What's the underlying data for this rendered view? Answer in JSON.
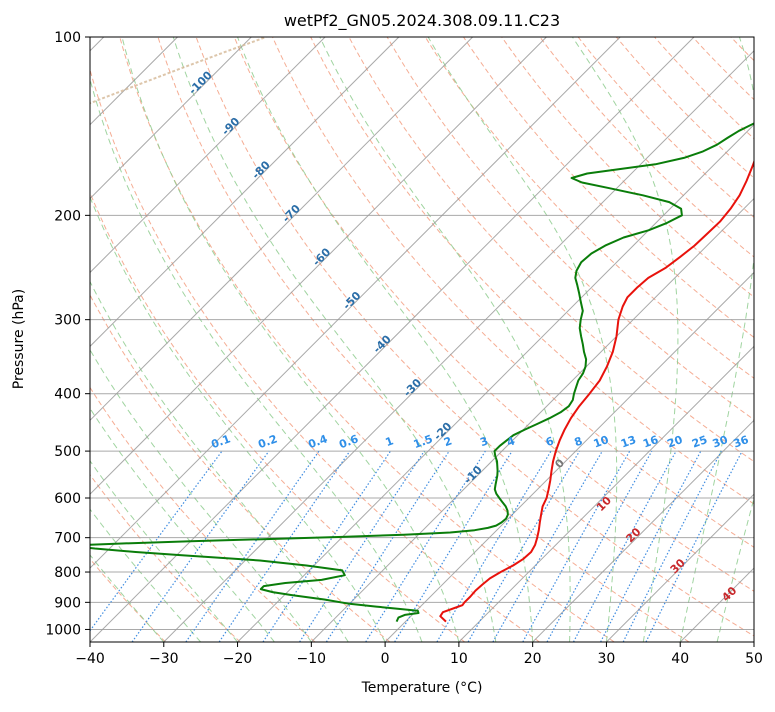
{
  "chart_data": {
    "type": "line",
    "chart_kind": "skew-T log-p diagram",
    "title": "wetPf2_GN05.2024.308.09.11.C23",
    "xlabel": "Temperature (°C)",
    "ylabel": "Pressure (hPa)",
    "xlim": [
      -40,
      50
    ],
    "ylim": [
      1050,
      100
    ],
    "y_scale": "log",
    "x_ticks": [
      -40,
      -30,
      -20,
      -10,
      0,
      10,
      20,
      30,
      40,
      50
    ],
    "x_tick_labels": [
      "−40",
      "−30",
      "−20",
      "−10",
      "0",
      "10",
      "20",
      "30",
      "40",
      "50"
    ],
    "y_ticks": [
      100,
      200,
      300,
      400,
      500,
      600,
      700,
      800,
      900,
      1000
    ],
    "y_tick_labels": [
      "100",
      "200",
      "300",
      "400",
      "500",
      "600",
      "700",
      "800",
      "900",
      "1000"
    ],
    "grid": true,
    "colors": {
      "temperature": "#e8120c",
      "dewpoint": "#0a7d0a",
      "isotherm": "#9a9a9a",
      "dry_adiabat": "#f4a488",
      "moist_adiabat": "#8fcc8f",
      "mixing_ratio": "#3f8ce0",
      "mixing_label": "#2f8fe8",
      "isotherm_label": "#2b6ea8",
      "moist_label": "#c8282c",
      "zero_label": "#777777",
      "special_curve": "#d4b896"
    },
    "series": [
      {
        "role": "temperature",
        "pressure": [
          970,
          950,
          935,
          920,
          910,
          900,
          880,
          860,
          840,
          820,
          800,
          780,
          760,
          740,
          720,
          700,
          680,
          660,
          640,
          620,
          600,
          580,
          560,
          540,
          520,
          500,
          480,
          460,
          440,
          420,
          400,
          380,
          360,
          340,
          320,
          300,
          285,
          275,
          265,
          255,
          245,
          235,
          225,
          215,
          205,
          195,
          185,
          175,
          165,
          155,
          145,
          135,
          125,
          115,
          105,
          100
        ],
        "temperature": [
          5.5,
          4.0,
          3.8,
          4.8,
          5.5,
          5.4,
          5.4,
          5.3,
          5.4,
          5.6,
          6.2,
          7.0,
          7.5,
          7.6,
          7.2,
          6.5,
          5.7,
          4.8,
          3.9,
          3.0,
          2.4,
          1.5,
          0.5,
          -0.6,
          -1.7,
          -2.7,
          -3.6,
          -4.4,
          -5.1,
          -5.6,
          -5.9,
          -6.3,
          -7.2,
          -8.4,
          -10.0,
          -12.0,
          -13.2,
          -13.8,
          -13.8,
          -13.6,
          -12.6,
          -12.1,
          -11.7,
          -11.6,
          -11.5,
          -11.8,
          -12.4,
          -13.4,
          -14.6,
          -16.0,
          -17.6,
          -19.4,
          -21.3,
          -23.0,
          -24.5,
          -25.3
        ]
      },
      {
        "role": "dewpoint",
        "pressure": [
          970,
          955,
          945,
          938,
          930,
          922,
          915,
          905,
          890,
          875,
          865,
          855,
          845,
          835,
          825,
          810,
          795,
          780,
          765,
          750,
          740,
          730,
          722,
          716,
          710,
          704,
          698,
          692,
          686,
          680,
          674,
          668,
          660,
          650,
          640,
          630,
          620,
          610,
          600,
          590,
          580,
          570,
          560,
          550,
          540,
          530,
          520,
          510,
          500,
          490,
          480,
          470,
          460,
          450,
          440,
          430,
          420,
          410,
          400,
          390,
          380,
          370,
          360,
          350,
          340,
          330,
          320,
          310,
          300,
          290,
          280,
          270,
          262,
          255,
          248,
          240,
          232,
          225,
          218,
          212,
          206,
          200,
          195,
          190,
          185,
          180,
          176,
          173,
          170,
          167,
          164,
          160,
          156,
          152,
          148,
          144,
          140,
          135,
          130,
          125,
          120,
          115,
          110,
          105,
          100
        ],
        "dewpoint": [
          -1.2,
          -1.5,
          -1.0,
          0.6,
          0.2,
          -3.0,
          -6.0,
          -10.0,
          -14.0,
          -19.0,
          -22.0,
          -24.0,
          -24.0,
          -21.5,
          -17.0,
          -14.5,
          -15.5,
          -21.0,
          -28.0,
          -39.0,
          -46.0,
          -52.0,
          -56.0,
          -49.0,
          -40.0,
          -30.0,
          -20.0,
          -12.0,
          -6.0,
          -3.0,
          -1.5,
          -0.7,
          -0.4,
          -0.3,
          -0.6,
          -1.2,
          -2.0,
          -3.0,
          -4.0,
          -5.0,
          -5.8,
          -6.3,
          -6.8,
          -7.3,
          -7.9,
          -8.6,
          -9.3,
          -10.2,
          -11.0,
          -11.0,
          -10.8,
          -10.6,
          -9.8,
          -8.9,
          -8.0,
          -7.3,
          -7.0,
          -7.3,
          -8.0,
          -8.6,
          -9.2,
          -9.5,
          -10.1,
          -11.0,
          -12.3,
          -13.5,
          -14.8,
          -16.1,
          -17.1,
          -18.0,
          -19.5,
          -21.0,
          -22.3,
          -23.5,
          -24.3,
          -24.8,
          -24.6,
          -23.8,
          -22.4,
          -20.0,
          -18.5,
          -17.5,
          -18.5,
          -21.0,
          -25.5,
          -31.0,
          -35.5,
          -37.5,
          -36.0,
          -32.0,
          -28.0,
          -25.0,
          -23.3,
          -22.3,
          -21.8,
          -21.2,
          -20.2,
          -18.8,
          -17.6,
          -16.8,
          -16.0,
          -15.0,
          -14.0,
          -13.0,
          -12.3
        ]
      }
    ],
    "isotherm_labels": [
      "-100",
      "-90",
      "-80",
      "-70",
      "-60",
      "-50",
      "-40",
      "-30",
      "-20",
      "-10"
    ],
    "mixing_ratio_labels": [
      "0.1",
      "0.2",
      "0.4",
      "0.6",
      "1",
      "1.5",
      "2",
      "3",
      "4",
      "6",
      "8",
      "10",
      "13",
      "16",
      "20",
      "25",
      "30",
      "36"
    ],
    "moist_adiabat_labels": [
      "0",
      "10",
      "20",
      "30",
      "40"
    ]
  }
}
